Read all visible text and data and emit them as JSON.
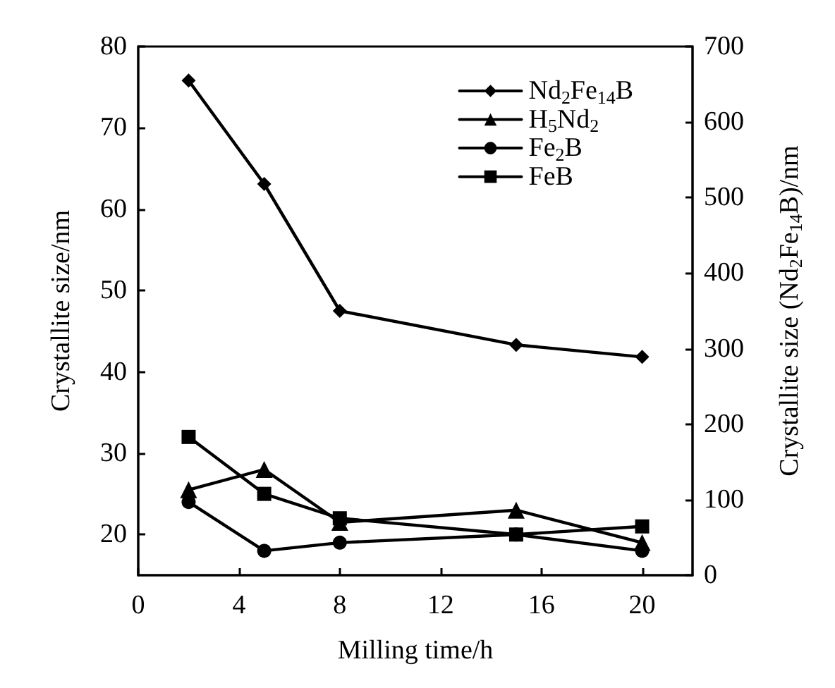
{
  "chart_data": {
    "type": "line",
    "xlabel": "Milling time/h",
    "ylabel": "Crystallite size/nm",
    "y2label": "Crystallite size (Nd$_{2}$Fe$_{14}$B)/nm",
    "x": [
      2,
      5,
      8,
      15,
      20
    ],
    "xlim": [
      0,
      22
    ],
    "xticks": [
      0,
      4,
      8,
      12,
      16,
      20
    ],
    "ylim": [
      15,
      80
    ],
    "yticks": [
      20,
      30,
      40,
      50,
      60,
      70,
      80
    ],
    "y2lim": [
      0,
      700
    ],
    "y2ticks": [
      0,
      100,
      200,
      300,
      400,
      500,
      600,
      700
    ],
    "grid": false,
    "legend": "top right",
    "line_style": "solid",
    "series": [
      {
        "name": "Nd$_{2}$Fe$_{14}$B",
        "color": "#000000",
        "marker": "diamond",
        "axis": "y2",
        "values": [
          655,
          518,
          350,
          305,
          289
        ]
      },
      {
        "name": "H$_{5}$Nd$_{2}$",
        "color": "#000000",
        "marker": "triangle",
        "values": [
          25.5,
          28,
          21.5,
          23,
          19
        ]
      },
      {
        "name": "Fe$_{2}$B",
        "color": "#000000",
        "marker": "circle",
        "values": [
          24,
          18,
          19,
          20,
          18
        ]
      },
      {
        "name": "FeB",
        "color": "#000000",
        "marker": "square",
        "values": [
          32,
          25,
          22,
          20,
          21
        ]
      }
    ]
  }
}
